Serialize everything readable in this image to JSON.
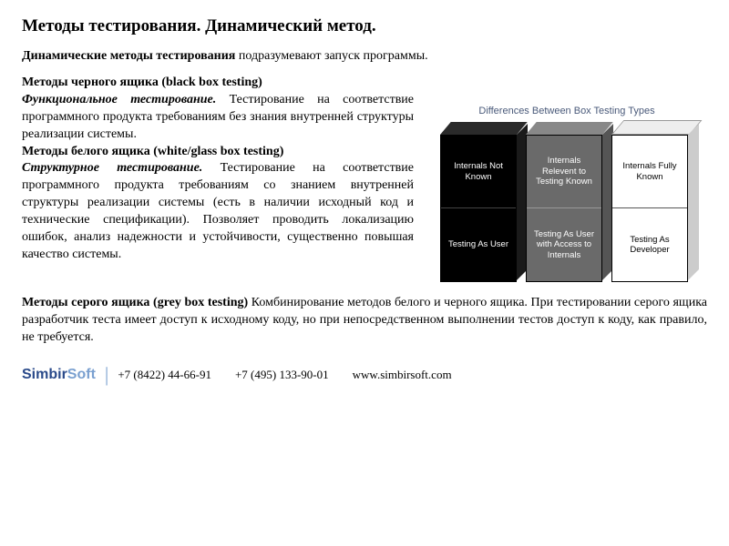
{
  "title": "Методы тестирования. Динамический метод.",
  "intro_bold": "Динамические методы тестирования",
  "intro_rest": " подразумевают запуск программы.",
  "bb_heading": "Методы черного ящика (black box testing)",
  "bb_sub": "Функциональное тестирование.",
  "bb_body": " Тестирование на соответствие программного продукта требованиям без знания внутренней структуры реализации системы.",
  "wb_heading": "Методы белого ящика (white/glass box testing)",
  "wb_sub": "Структурное тестирование.",
  "wb_body": " Тестирование на соответствие программного продукта требованиям со знанием внутренней структуры реализации системы (есть в наличии исходный код и технические спецификации). Позволяет проводить локализацию ошибок, анализ надежности и устойчивости, существенно повышая качество системы.",
  "gb_heading": "Методы серого ящика (grey box testing)",
  "gb_body": " Комбинирование методов белого и черного ящика. При тестировании серого ящика разработчик теста имеет доступ к исходному коду, но при непосредственном выполнении тестов доступ к коду, как правило, не требуется.",
  "diagram": {
    "title": "Differences Between Box Testing Types",
    "boxes": [
      {
        "color": "black",
        "top": "Internals Not Known",
        "bottom": "Testing As User"
      },
      {
        "color": "grey",
        "top": "Internals Relevent to Testing Known",
        "bottom": "Testing As User with Access to Internals"
      },
      {
        "color": "white",
        "top": "Internals Fully Known",
        "bottom": "Testing As Developer"
      }
    ]
  },
  "footer": {
    "logo1": "Simbir",
    "logo2": "Soft",
    "phone1": "+7 (8422) 44-66-91",
    "phone2": "+7 (495) 133-90-01",
    "url": "www.simbirsoft.com"
  }
}
